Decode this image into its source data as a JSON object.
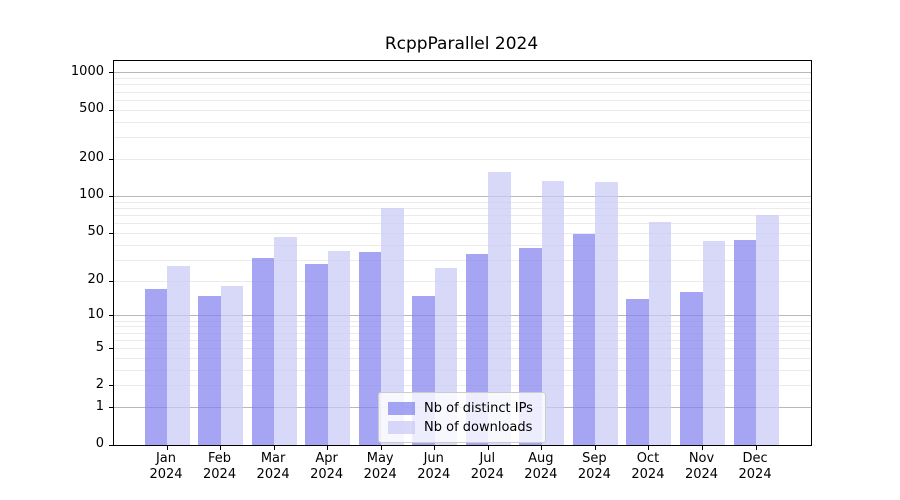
{
  "chart_data": {
    "type": "bar",
    "title": "RcppParallel 2024",
    "x_months": [
      "Jan",
      "Feb",
      "Mar",
      "Apr",
      "May",
      "Jun",
      "Jul",
      "Aug",
      "Sep",
      "Oct",
      "Nov",
      "Dec"
    ],
    "x_year": "2024",
    "series": [
      {
        "name": "Nb of distinct IPs",
        "color": "rgba(130,130,238,0.72)",
        "values": [
          17,
          15,
          31,
          28,
          35,
          15,
          34,
          38,
          49,
          14,
          16,
          44
        ]
      },
      {
        "name": "Nb of downloads",
        "color": "rgba(201,201,245,0.72)",
        "values": [
          27,
          18,
          47,
          36,
          80,
          26,
          158,
          134,
          131,
          62,
          43,
          70
        ]
      }
    ],
    "y_scale": "log1p",
    "y_ticks": [
      0,
      1,
      2,
      5,
      10,
      20,
      50,
      100,
      200,
      500,
      1000
    ],
    "y_major_gridlines": [
      1,
      10,
      100,
      1000
    ],
    "y_minor_gridlines": [
      2,
      3,
      4,
      5,
      6,
      7,
      8,
      9,
      20,
      30,
      40,
      50,
      60,
      70,
      80,
      90,
      200,
      300,
      400,
      500,
      600,
      700,
      800,
      900
    ],
    "ylim": [
      0,
      1237
    ],
    "grid": true,
    "legend_position": "lower center",
    "colors": {
      "major_grid": "#b8b8b8",
      "minor_grid": "#ebebeb",
      "spine": "#000000",
      "text": "#000000",
      "legend_border": "#cccccc"
    }
  }
}
